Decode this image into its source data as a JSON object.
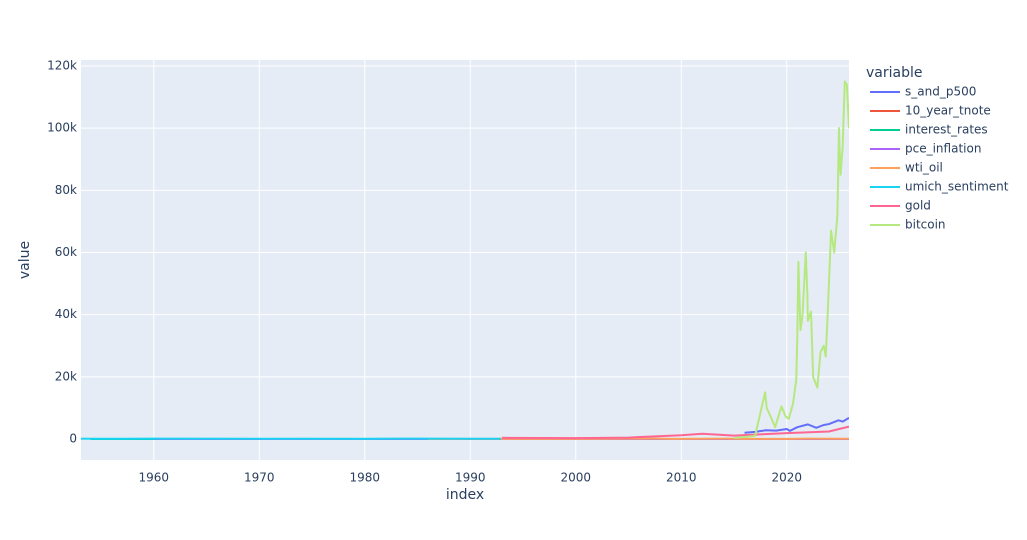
{
  "chart_data": {
    "type": "line",
    "x_label": "index",
    "y_label": "value",
    "legend_title": "variable",
    "xlim": [
      1953.1,
      2025.9
    ],
    "xticks": [
      1960,
      1970,
      1980,
      1990,
      2000,
      2010,
      2020
    ],
    "ylim": [
      -6760,
      121930
    ],
    "yticks": [
      0,
      {
        "value": 20000,
        "label": "20k"
      },
      {
        "value": 40000,
        "label": "40k"
      },
      {
        "value": 60000,
        "label": "60k"
      },
      {
        "value": 80000,
        "label": "80k"
      },
      {
        "value": 100000,
        "label": "100k"
      },
      {
        "value": 120000,
        "label": "120k"
      }
    ],
    "grid": true,
    "legend": "right",
    "series": [
      {
        "name": "s_and_p500",
        "color": "#636efa",
        "x": [
          2016,
          2017,
          2018,
          2019,
          2020,
          2020.3,
          2021,
          2022,
          2022.8,
          2023.5,
          2024,
          2024.9,
          2025.3,
          2025.9
        ],
        "values": [
          2000,
          2300,
          2800,
          2700,
          3200,
          2600,
          3800,
          4700,
          3600,
          4500,
          4800,
          6000,
          5600,
          6800
        ]
      },
      {
        "name": "10_year_tnote",
        "color": "#EF553B",
        "x": [
          1962,
          1981,
          2000,
          2012,
          2020,
          2023.8,
          2025.9
        ],
        "values": [
          4,
          15,
          6,
          1.7,
          0.6,
          4.9,
          4.1
        ]
      },
      {
        "name": "interest_rates",
        "color": "#00cc96",
        "x": [
          1954,
          1970,
          1981,
          1990,
          2000,
          2009,
          2019,
          2020.3,
          2023.5,
          2025.9
        ],
        "values": [
          1,
          8,
          19,
          8,
          6.5,
          0.1,
          2.4,
          0.1,
          5.3,
          3.9
        ]
      },
      {
        "name": "pce_inflation",
        "color": "#ab63fa",
        "x": [
          1960,
          1974,
          1980,
          1990,
          2000,
          2009,
          2021,
          2025.9
        ],
        "values": [
          1.5,
          11,
          11,
          5,
          2.5,
          -1,
          6.8,
          2.8
        ]
      },
      {
        "name": "wti_oil",
        "color": "#FFA15A",
        "x": [
          1986,
          1990,
          2000,
          2008,
          2009,
          2014,
          2016,
          2020,
          2022,
          2025.9
        ],
        "values": [
          15,
          28,
          30,
          130,
          40,
          100,
          30,
          20,
          110,
          60
        ]
      },
      {
        "name": "umich_sentiment",
        "color": "#19d3f3",
        "x": [
          1953.1,
          1960,
          1970,
          1974,
          1980,
          1984,
          1990,
          1992.9
        ],
        "values": [
          80,
          100,
          75,
          65,
          55,
          100,
          65,
          85
        ]
      },
      {
        "name": "gold",
        "color": "#FF6692",
        "x": [
          1993,
          2000,
          2005,
          2010,
          2012,
          2015,
          2020,
          2024,
          2025.9
        ],
        "values": [
          380,
          280,
          450,
          1200,
          1700,
          1100,
          1900,
          2400,
          4000
        ]
      },
      {
        "name": "bitcoin",
        "color": "#B6E880",
        "x": [
          2015,
          2017,
          2017.95,
          2018.1,
          2018.5,
          2018.9,
          2019.5,
          2019.9,
          2020.2,
          2020.6,
          2020.9,
          2021,
          2021.1,
          2021.3,
          2021.5,
          2021.8,
          2021.95,
          2022,
          2022.3,
          2022.5,
          2022.9,
          2023.2,
          2023.5,
          2023.7,
          2023.9,
          2024.2,
          2024.5,
          2024.8,
          2024.95,
          2025,
          2025.1,
          2025.3,
          2025.5,
          2025.7,
          2025.9
        ],
        "values": [
          300,
          1000,
          15000,
          10000,
          7000,
          3800,
          10500,
          7200,
          6500,
          11500,
          19000,
          33000,
          57000,
          35000,
          40000,
          60000,
          47000,
          38000,
          41000,
          20000,
          16500,
          28000,
          30000,
          26500,
          42000,
          67000,
          60000,
          72000,
          100000,
          94000,
          85000,
          94000,
          115000,
          114000,
          100000
        ]
      }
    ]
  }
}
